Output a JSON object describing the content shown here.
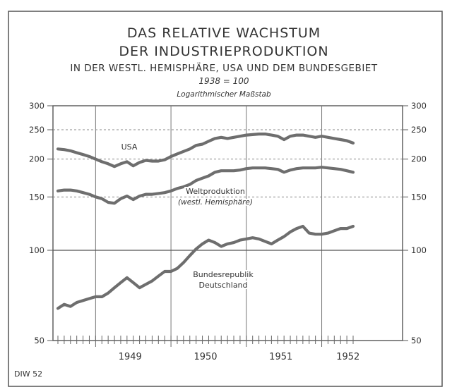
{
  "chart_data": {
    "type": "line",
    "title_line1": "DAS RELATIVE WACHSTUM",
    "title_line2": "DER INDUSTRIEPRODUKTION",
    "subtitle": "IN DER WESTL. HEMISPHÄRE, USA UND DEM BUNDESGEBIET",
    "base_note": "1938 = 100",
    "scale_note": "Logarithmischer Maßstab",
    "source": "DIW 52",
    "y_scale": "log",
    "ylim": [
      50,
      300
    ],
    "y_ticks": [
      50,
      100,
      150,
      200,
      250,
      300
    ],
    "y_tick_labels": [
      "50",
      "100",
      "150",
      "200",
      "250",
      "300"
    ],
    "x_labels": [
      "1949",
      "1950",
      "1951",
      "1952"
    ],
    "x_range": [
      "1948-07",
      "1952-06"
    ],
    "grid": true,
    "series": [
      {
        "name": "USA",
        "color": "#6e6e6e",
        "x": [
          "1948-07",
          "1948-08",
          "1948-09",
          "1948-10",
          "1948-11",
          "1948-12",
          "1949-01",
          "1949-02",
          "1949-03",
          "1949-04",
          "1949-05",
          "1949-06",
          "1949-07",
          "1949-08",
          "1949-09",
          "1949-10",
          "1949-11",
          "1949-12",
          "1950-01",
          "1950-02",
          "1950-03",
          "1950-04",
          "1950-05",
          "1950-06",
          "1950-07",
          "1950-08",
          "1950-09",
          "1950-10",
          "1950-11",
          "1950-12",
          "1951-01",
          "1951-02",
          "1951-03",
          "1951-04",
          "1951-05",
          "1951-06",
          "1951-07",
          "1951-08",
          "1951-09",
          "1951-10",
          "1951-11",
          "1951-12",
          "1952-01",
          "1952-02",
          "1952-03",
          "1952-04",
          "1952-05",
          "1952-06"
        ],
        "values": [
          216,
          215,
          213,
          210,
          207,
          204,
          200,
          196,
          193,
          189,
          193,
          196,
          190,
          195,
          198,
          197,
          197,
          199,
          204,
          208,
          212,
          216,
          222,
          224,
          229,
          234,
          236,
          234,
          236,
          238,
          240,
          241,
          242,
          242,
          240,
          238,
          232,
          238,
          240,
          240,
          238,
          236,
          238,
          236,
          234,
          232,
          230,
          226
        ]
      },
      {
        "name": "Weltproduktion (westl. Hemisphäre)",
        "color": "#6e6e6e",
        "x": [
          "1948-07",
          "1948-08",
          "1948-09",
          "1948-10",
          "1948-11",
          "1948-12",
          "1949-01",
          "1949-02",
          "1949-03",
          "1949-04",
          "1949-05",
          "1949-06",
          "1949-07",
          "1949-08",
          "1949-09",
          "1949-10",
          "1949-11",
          "1949-12",
          "1950-01",
          "1950-02",
          "1950-03",
          "1950-04",
          "1950-05",
          "1950-06",
          "1950-07",
          "1950-08",
          "1950-09",
          "1950-10",
          "1950-11",
          "1950-12",
          "1951-01",
          "1951-02",
          "1951-03",
          "1951-04",
          "1951-05",
          "1951-06",
          "1951-07",
          "1951-08",
          "1951-09",
          "1951-10",
          "1951-11",
          "1951-12",
          "1952-01",
          "1952-02",
          "1952-03",
          "1952-04",
          "1952-05",
          "1952-06"
        ],
        "values": [
          157,
          158,
          158,
          157,
          155,
          153,
          150,
          148,
          144,
          143,
          148,
          151,
          147,
          151,
          153,
          153,
          154,
          155,
          157,
          160,
          162,
          165,
          170,
          173,
          176,
          181,
          183,
          183,
          183,
          184,
          186,
          187,
          187,
          187,
          186,
          185,
          181,
          184,
          186,
          187,
          187,
          187,
          188,
          187,
          186,
          185,
          183,
          181
        ]
      },
      {
        "name": "Bundesrepublik Deutschland",
        "color": "#6e6e6e",
        "x": [
          "1948-07",
          "1948-08",
          "1948-09",
          "1948-10",
          "1948-11",
          "1948-12",
          "1949-01",
          "1949-02",
          "1949-03",
          "1949-04",
          "1949-05",
          "1949-06",
          "1949-07",
          "1949-08",
          "1949-09",
          "1949-10",
          "1949-11",
          "1949-12",
          "1950-01",
          "1950-02",
          "1950-03",
          "1950-04",
          "1950-05",
          "1950-06",
          "1950-07",
          "1950-08",
          "1950-09",
          "1950-10",
          "1950-11",
          "1950-12",
          "1951-01",
          "1951-02",
          "1951-03",
          "1951-04",
          "1951-05",
          "1951-06",
          "1951-07",
          "1951-08",
          "1951-09",
          "1951-10",
          "1951-11",
          "1951-12",
          "1952-01",
          "1952-02",
          "1952-03",
          "1952-04",
          "1952-05",
          "1952-06"
        ],
        "values": [
          64,
          66,
          65,
          67,
          68,
          69,
          70,
          70,
          72,
          75,
          78,
          81,
          78,
          75,
          77,
          79,
          82,
          85,
          85,
          87,
          91,
          96,
          101,
          105,
          108,
          106,
          103,
          105,
          106,
          108,
          109,
          110,
          109,
          107,
          105,
          108,
          111,
          115,
          118,
          120,
          114,
          113,
          113,
          114,
          116,
          118,
          118,
          120
        ]
      }
    ]
  }
}
